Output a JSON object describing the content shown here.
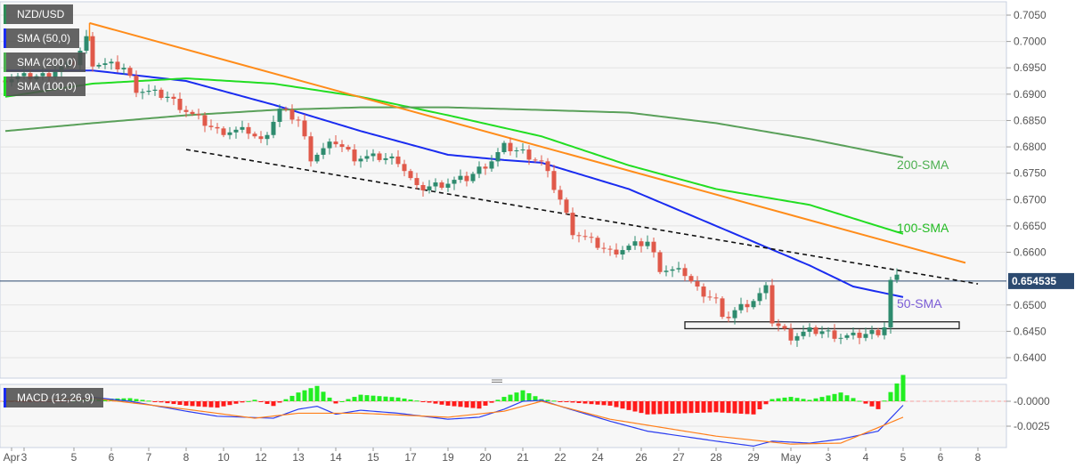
{
  "legend": [
    {
      "text": "NZD/USD",
      "color": "#2e8b57"
    },
    {
      "text": "SMA (50,0)",
      "color": "#1a2cf0"
    },
    {
      "text": "SMA (200,0)",
      "color": "#4caf50"
    },
    {
      "text": "SMA (100,0)",
      "color": "#22dd22"
    }
  ],
  "macd_label": "MACD (12,26,9)",
  "chart_data": {
    "type": "candlestick",
    "title": "NZD/USD",
    "price_ylim": [
      0.6375,
      0.707
    ],
    "price_ticks": [
      "0.7050",
      "0.7000",
      "0.6950",
      "0.6900",
      "0.6850",
      "0.6800",
      "0.6750",
      "0.6700",
      "0.6650",
      "0.6600",
      "0.6500",
      "0.6450",
      "0.6400"
    ],
    "current_price": "0.654535",
    "macd_ticks": [
      "-0.0000",
      "-0.0025"
    ],
    "x_ticks": [
      {
        "bar": 1,
        "label": "Apr"
      },
      {
        "bar": 3,
        "label": "3"
      },
      {
        "bar": 11,
        "label": "5"
      },
      {
        "bar": 17,
        "label": "6"
      },
      {
        "bar": 23,
        "label": "7"
      },
      {
        "bar": 29,
        "label": "8"
      },
      {
        "bar": 35,
        "label": "10"
      },
      {
        "bar": 41,
        "label": "12"
      },
      {
        "bar": 47,
        "label": "13"
      },
      {
        "bar": 53,
        "label": "14"
      },
      {
        "bar": 59,
        "label": "15"
      },
      {
        "bar": 65,
        "label": "17"
      },
      {
        "bar": 71,
        "label": "19"
      },
      {
        "bar": 77,
        "label": "20"
      },
      {
        "bar": 83,
        "label": "21"
      },
      {
        "bar": 89,
        "label": "22"
      },
      {
        "bar": 95,
        "label": "24"
      },
      {
        "bar": 102,
        "label": "26"
      },
      {
        "bar": 108,
        "label": "27"
      },
      {
        "bar": 114,
        "label": "28"
      },
      {
        "bar": 120,
        "label": "29"
      },
      {
        "bar": 126,
        "label": "May"
      },
      {
        "bar": 132,
        "label": "3"
      },
      {
        "bar": 138,
        "label": "4"
      },
      {
        "bar": 144,
        "label": "5"
      },
      {
        "bar": 150,
        "label": "6"
      },
      {
        "bar": 156,
        "label": "8"
      }
    ],
    "close_path": [
      [
        0,
        0.693
      ],
      [
        6,
        0.6935
      ],
      [
        11,
        0.696
      ],
      [
        13,
        0.7005
      ],
      [
        14,
        0.696
      ],
      [
        19,
        0.695
      ],
      [
        21,
        0.691
      ],
      [
        26,
        0.6895
      ],
      [
        30,
        0.686
      ],
      [
        34,
        0.683
      ],
      [
        39,
        0.683
      ],
      [
        41,
        0.681
      ],
      [
        44,
        0.687
      ],
      [
        47,
        0.685
      ],
      [
        49,
        0.678
      ],
      [
        53,
        0.681
      ],
      [
        56,
        0.678
      ],
      [
        60,
        0.678
      ],
      [
        63,
        0.6775
      ],
      [
        66,
        0.672
      ],
      [
        70,
        0.673
      ],
      [
        74,
        0.674
      ],
      [
        78,
        0.6775
      ],
      [
        80,
        0.68
      ],
      [
        83,
        0.679
      ],
      [
        86,
        0.677
      ],
      [
        89,
        0.67
      ],
      [
        91,
        0.664
      ],
      [
        94,
        0.662
      ],
      [
        97,
        0.66
      ],
      [
        100,
        0.661
      ],
      [
        103,
        0.662
      ],
      [
        105,
        0.657
      ],
      [
        109,
        0.656
      ],
      [
        111,
        0.653
      ],
      [
        114,
        0.651
      ],
      [
        115,
        0.647
      ],
      [
        117,
        0.649
      ],
      [
        120,
        0.651
      ],
      [
        122,
        0.653
      ],
      [
        123,
        0.647
      ],
      [
        126,
        0.644
      ],
      [
        129,
        0.645
      ],
      [
        131,
        0.645
      ],
      [
        134,
        0.644
      ],
      [
        136,
        0.644
      ],
      [
        140,
        0.645
      ],
      [
        141,
        0.646
      ],
      [
        142,
        0.6545
      ],
      [
        143,
        0.655
      ]
    ],
    "sma": [
      {
        "name": "50-SMA",
        "color": "#1a2cf0",
        "label_color": "#7b5cd6",
        "points": [
          [
            0,
            0.6945
          ],
          [
            14,
            0.6945
          ],
          [
            29,
            0.6925
          ],
          [
            43,
            0.688
          ],
          [
            57,
            0.683
          ],
          [
            71,
            0.6785
          ],
          [
            80,
            0.6775
          ],
          [
            86,
            0.677
          ],
          [
            100,
            0.672
          ],
          [
            114,
            0.665
          ],
          [
            129,
            0.6575
          ],
          [
            136,
            0.6535
          ],
          [
            144,
            0.6515
          ]
        ]
      },
      {
        "name": "100-SMA",
        "color": "#22dd22",
        "label_color": "#22bb22",
        "points": [
          [
            0,
            0.6895
          ],
          [
            14,
            0.692
          ],
          [
            29,
            0.693
          ],
          [
            43,
            0.692
          ],
          [
            57,
            0.6895
          ],
          [
            71,
            0.686
          ],
          [
            86,
            0.682
          ],
          [
            100,
            0.6765
          ],
          [
            114,
            0.672
          ],
          [
            129,
            0.669
          ],
          [
            144,
            0.6635
          ]
        ]
      },
      {
        "name": "200-SMA",
        "color": "#5aa05a",
        "label_color": "#4caf50",
        "points": [
          [
            0,
            0.683
          ],
          [
            14,
            0.6845
          ],
          [
            29,
            0.686
          ],
          [
            43,
            0.687
          ],
          [
            57,
            0.6875
          ],
          [
            71,
            0.6875
          ],
          [
            86,
            0.687
          ],
          [
            100,
            0.6865
          ],
          [
            114,
            0.6845
          ],
          [
            129,
            0.6815
          ],
          [
            144,
            0.678
          ]
        ]
      }
    ],
    "trendline_resistance": [
      [
        13.5,
        0.7035
      ],
      [
        154,
        0.658
      ]
    ],
    "trendline_support_dashed": [
      [
        29,
        0.6795
      ],
      [
        156,
        0.654
      ]
    ],
    "support_box": {
      "from": 109,
      "to": 153,
      "low": 0.6455,
      "high": 0.6468
    },
    "macd_ylim": [
      -0.0048,
      0.0018
    ],
    "macd_line": [
      [
        0,
        0
      ],
      [
        10,
        0.0002
      ],
      [
        14,
        0.0004
      ],
      [
        20,
        0
      ],
      [
        29,
        -0.001
      ],
      [
        34,
        -0.0015
      ],
      [
        43,
        -0.0017
      ],
      [
        47,
        -0.0008
      ],
      [
        50,
        -0.0005
      ],
      [
        53,
        -0.0013
      ],
      [
        57,
        -0.0009
      ],
      [
        63,
        -0.0012
      ],
      [
        71,
        -0.0018
      ],
      [
        76,
        -0.0016
      ],
      [
        80,
        -0.0008
      ],
      [
        83,
        0
      ],
      [
        86,
        0.0001
      ],
      [
        89,
        -0.0005
      ],
      [
        97,
        -0.002
      ],
      [
        103,
        -0.003
      ],
      [
        114,
        -0.004
      ],
      [
        120,
        -0.0045
      ],
      [
        123,
        -0.004
      ],
      [
        129,
        -0.0042
      ],
      [
        134,
        -0.0038
      ],
      [
        140,
        -0.003
      ],
      [
        144,
        -0.0004
      ]
    ],
    "signal_line": [
      [
        0,
        0
      ],
      [
        14,
        0.0003
      ],
      [
        29,
        -0.0008
      ],
      [
        40,
        -0.0017
      ],
      [
        47,
        -0.0012
      ],
      [
        57,
        -0.0012
      ],
      [
        71,
        -0.0016
      ],
      [
        80,
        -0.001
      ],
      [
        86,
        0
      ],
      [
        97,
        -0.0018
      ],
      [
        114,
        -0.0035
      ],
      [
        126,
        -0.0043
      ],
      [
        134,
        -0.0042
      ],
      [
        144,
        -0.0016
      ]
    ]
  }
}
